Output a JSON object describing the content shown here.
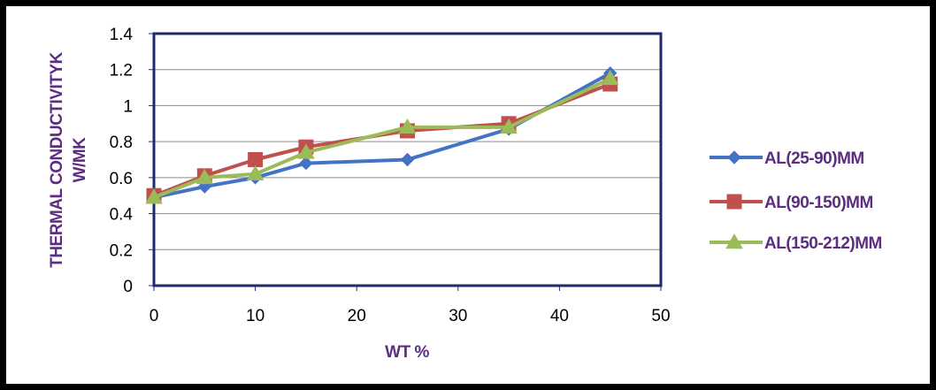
{
  "chart_data": {
    "type": "line",
    "xlabel": "WT %",
    "ylabel_lines": [
      "THERMAL CONDUCTIVITYK",
      "W/MK"
    ],
    "xlim": [
      0,
      50
    ],
    "ylim": [
      0,
      1.4
    ],
    "x_ticks": [
      "0",
      "10",
      "20",
      "30",
      "40",
      "50"
    ],
    "y_ticks": [
      "0",
      "0.2",
      "0.4",
      "0.6",
      "0.8",
      "1",
      "1.2",
      "1.4"
    ],
    "grid": "horizontal",
    "legend_position": "right",
    "label_color": "#5c2d82",
    "plot_border_color": "#1f2a6e",
    "series": [
      {
        "name": "AL(25-90)MM",
        "color": "#4472c4",
        "marker": "diamond",
        "x": [
          0,
          5,
          10,
          15,
          25,
          35,
          45
        ],
        "y": [
          0.49,
          0.55,
          0.6,
          0.68,
          0.7,
          0.87,
          1.18
        ]
      },
      {
        "name": "AL(90-150)MM",
        "color": "#c0504d",
        "marker": "square",
        "x": [
          0,
          5,
          10,
          15,
          25,
          35,
          45
        ],
        "y": [
          0.5,
          0.61,
          0.7,
          0.77,
          0.86,
          0.9,
          1.12
        ]
      },
      {
        "name": "AL(150-212)MM",
        "color": "#9bbb59",
        "marker": "triangle",
        "x": [
          0,
          5,
          10,
          15,
          25,
          35,
          45
        ],
        "y": [
          0.49,
          0.6,
          0.62,
          0.74,
          0.88,
          0.88,
          1.15
        ]
      }
    ]
  }
}
